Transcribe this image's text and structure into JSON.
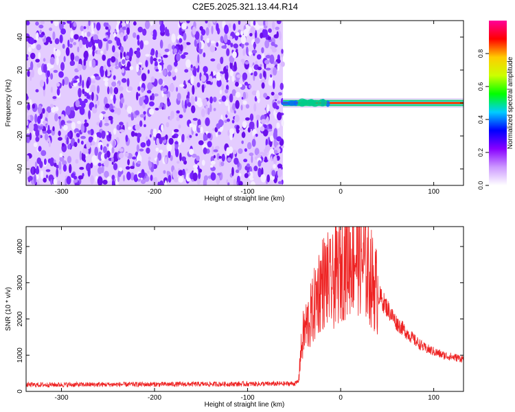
{
  "title": "C2E5.2025.321.13.44.R14",
  "chart_data": [
    {
      "type": "heatmap",
      "name": "spectrogram",
      "xlabel": "Height of straight line (km)",
      "ylabel": "Frequency (Hz)",
      "xlim": [
        -338,
        132
      ],
      "ylim": [
        -50,
        50
      ],
      "xticks": [
        -300,
        -200,
        -100,
        0,
        100
      ],
      "yticks": [
        -40,
        -20,
        0,
        20,
        40
      ],
      "xtick_labels": [
        "-300",
        "-200",
        "-100",
        "0",
        "100"
      ],
      "ytick_labels": [
        "-40",
        "-20",
        "0",
        "20",
        "40"
      ],
      "noise_region_x": [
        -338,
        -62
      ],
      "carrier_frequency": 0,
      "carrier_start_x": -62,
      "colorbar": {
        "label": "Normalized spectral amplitude",
        "range": [
          0.0,
          1.0
        ],
        "ticks": [
          0.0,
          0.2,
          0.4,
          0.6,
          0.8
        ],
        "tick_labels": [
          "0.0",
          "0.2",
          "0.4",
          "0.6",
          "0.8"
        ],
        "colors": [
          "#ffffff",
          "#cc99ff",
          "#8800ff",
          "#0000ff",
          "#00ccff",
          "#00ff00",
          "#ccff00",
          "#ffcc00",
          "#ff0000",
          "#ff0099"
        ]
      }
    },
    {
      "type": "line",
      "name": "snr",
      "xlabel": "Height of straight line (km)",
      "ylabel": "SNR (10 * v/v)",
      "xlim": [
        -338,
        132
      ],
      "ylim": [
        0,
        4550
      ],
      "xticks": [
        -300,
        -200,
        -100,
        0,
        100
      ],
      "yticks": [
        0,
        1000,
        2000,
        3000,
        4000
      ],
      "xtick_labels": [
        "-300",
        "-200",
        "-100",
        "0",
        "100"
      ],
      "ytick_labels": [
        "0",
        "1000",
        "2000",
        "3000",
        "4000"
      ],
      "color": "#ee2222",
      "series": [
        {
          "name": "SNR",
          "x": [
            -338,
            -300,
            -250,
            -200,
            -150,
            -100,
            -60,
            -48,
            -45,
            -44,
            -40,
            -35,
            -30,
            -25,
            -20,
            -15,
            -10,
            -5,
            0,
            5,
            10,
            15,
            20,
            25,
            30,
            35,
            40,
            50,
            60,
            70,
            80,
            90,
            100,
            110,
            120,
            132
          ],
          "y": [
            180,
            185,
            190,
            195,
            200,
            205,
            210,
            220,
            300,
            800,
            1600,
            1900,
            2200,
            2700,
            3000,
            3100,
            2900,
            3200,
            3400,
            3600,
            3700,
            3800,
            3750,
            3500,
            3300,
            3000,
            2700,
            2300,
            1900,
            1650,
            1400,
            1200,
            1100,
            1000,
            950,
            900
          ]
        }
      ]
    }
  ]
}
